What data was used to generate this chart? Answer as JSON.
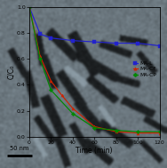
{
  "xlabel": "Time (min)",
  "ylabel": "C/C₀",
  "xlim": [
    0,
    120
  ],
  "ylim": [
    0.0,
    1.0
  ],
  "xticks": [
    0,
    20,
    40,
    60,
    80,
    100,
    120
  ],
  "yticks": [
    0.0,
    0.2,
    0.4,
    0.6,
    0.8,
    1.0
  ],
  "ytick_labels": [
    "0.0",
    "0.2",
    "0.4",
    "0.6",
    "0.8",
    "1.0"
  ],
  "bg_color": "#8da8b0",
  "series": [
    {
      "label": "MA-L",
      "color": "#2222cc",
      "marker": "s",
      "x": [
        0,
        10,
        20,
        40,
        60,
        80,
        100,
        120
      ],
      "y": [
        1.0,
        0.79,
        0.76,
        0.74,
        0.73,
        0.72,
        0.72,
        0.7
      ]
    },
    {
      "label": "MA-CF",
      "color": "#cc2200",
      "marker": "^",
      "x": [
        0,
        10,
        20,
        30,
        40,
        60,
        80,
        100,
        120
      ],
      "y": [
        1.0,
        0.62,
        0.43,
        0.32,
        0.22,
        0.08,
        0.04,
        0.03,
        0.03
      ]
    },
    {
      "label": "MA-CP",
      "color": "#008800",
      "marker": "D",
      "x": [
        0,
        10,
        20,
        40,
        60,
        80,
        100,
        120
      ],
      "y": [
        1.0,
        0.6,
        0.36,
        0.18,
        0.07,
        0.05,
        0.04,
        0.04
      ]
    }
  ],
  "scale_bar_text": "50 nm",
  "font_size": 5.5,
  "tick_font_size": 4.5,
  "label_font_size": 5.5
}
